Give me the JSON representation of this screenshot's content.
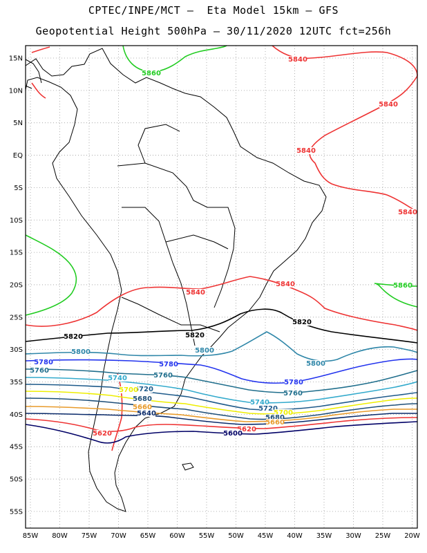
{
  "title_line1": "CPTEC/INPE/MCT –  Eta Model 15km – GFS",
  "title_line2": "Geopotential Height 500hPa – 30/11/2020 12UTC fct=256h",
  "lat_labels": [
    "15N",
    "10N",
    "5N",
    "EQ",
    "5S",
    "10S",
    "15S",
    "20S",
    "25S",
    "30S",
    "35S",
    "40S",
    "45S",
    "50S",
    "55S"
  ],
  "lon_labels": [
    "85W",
    "80W",
    "75W",
    "70W",
    "65W",
    "60W",
    "55W",
    "50W",
    "45W",
    "40W",
    "35W",
    "30W",
    "25W",
    "20W"
  ],
  "contours": [
    {
      "level": 5860,
      "label": "5860",
      "color": "#22cc22"
    },
    {
      "level": 5840,
      "label": "5840",
      "color": "#ee3333"
    },
    {
      "level": 5820,
      "label": "5820",
      "color": "#000000"
    },
    {
      "level": 5800,
      "label": "5800",
      "color": "#2e86a8"
    },
    {
      "level": 5780,
      "label": "5780",
      "color": "#2233ee"
    },
    {
      "level": 5760,
      "label": "5760",
      "color": "#1f6e8c"
    },
    {
      "level": 5740,
      "label": "5740",
      "color": "#33aacc"
    },
    {
      "level": 5720,
      "label": "5720",
      "color": "#1e5a8a"
    },
    {
      "level": 5700,
      "label": "5700",
      "color": "#eeee00"
    },
    {
      "level": 5680,
      "label": "5680",
      "color": "#1e4e78"
    },
    {
      "level": 5660,
      "label": "5660",
      "color": "#e89a2a"
    },
    {
      "level": 5640,
      "label": "5640",
      "color": "#0a2a6a"
    },
    {
      "level": 5620,
      "label": "5620",
      "color": "#ee3333"
    },
    {
      "level": 5600,
      "label": "5600",
      "color": "#000066"
    }
  ]
}
